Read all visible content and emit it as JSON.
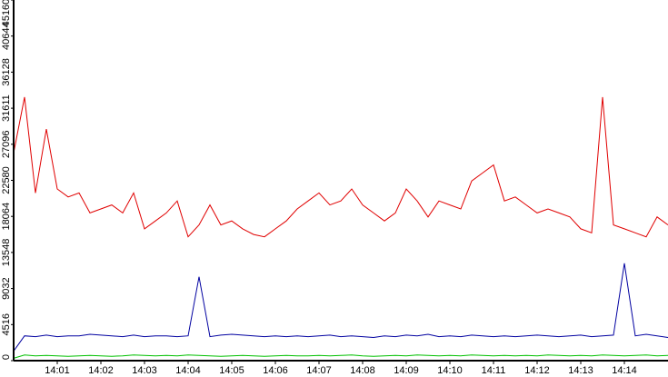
{
  "chart_data": {
    "type": "line",
    "x": [
      840,
      840.25,
      840.5,
      840.75,
      841,
      841.25,
      841.5,
      841.75,
      842,
      842.25,
      842.5,
      842.75,
      843,
      843.25,
      843.5,
      843.75,
      844,
      844.25,
      844.5,
      844.75,
      845,
      845.25,
      845.5,
      845.75,
      846,
      846.25,
      846.5,
      846.75,
      847,
      847.25,
      847.5,
      847.75,
      848,
      848.25,
      848.5,
      848.75,
      849,
      849.25,
      849.5,
      849.75,
      850,
      850.25,
      850.5,
      850.75,
      851,
      851.25,
      851.5,
      851.75,
      852,
      852.25,
      852.5,
      852.75,
      853,
      853.25,
      853.5,
      853.75,
      854,
      854.25,
      854.5,
      854.75,
      855
    ],
    "series": [
      {
        "name": "red",
        "color": "#e00000",
        "values": [
          26000,
          33000,
          21000,
          29000,
          21500,
          20500,
          21000,
          18500,
          19000,
          19500,
          18500,
          21000,
          16500,
          17500,
          18500,
          20000,
          15500,
          17000,
          19500,
          17000,
          17500,
          16500,
          15800,
          15500,
          16500,
          17500,
          19000,
          20000,
          21000,
          19500,
          20000,
          21500,
          19500,
          18500,
          17500,
          18500,
          21500,
          20000,
          18000,
          20000,
          19500,
          19000,
          22500,
          23500,
          24500,
          20000,
          20500,
          19500,
          18500,
          19000,
          18500,
          18000,
          16500,
          16000,
          33000,
          17000,
          16500,
          16000,
          15500,
          18000,
          17000
        ]
      },
      {
        "name": "blue",
        "color": "#0000a0",
        "values": [
          1200,
          3100,
          3000,
          3200,
          3000,
          3100,
          3100,
          3300,
          3200,
          3100,
          3000,
          3200,
          3000,
          3100,
          3100,
          3000,
          3100,
          10500,
          3000,
          3200,
          3300,
          3200,
          3100,
          3000,
          3100,
          3000,
          3100,
          3000,
          3100,
          3200,
          3000,
          3100,
          3000,
          2900,
          3100,
          3000,
          3200,
          3100,
          3300,
          3000,
          3100,
          3000,
          3200,
          3100,
          3000,
          3100,
          3000,
          3100,
          3200,
          3100,
          3000,
          3100,
          3200,
          3000,
          3100,
          3200,
          12200,
          3100,
          3300,
          3100,
          2900
        ]
      },
      {
        "name": "green",
        "color": "#00c000",
        "values": [
          300,
          700,
          600,
          650,
          600,
          550,
          600,
          650,
          600,
          550,
          600,
          700,
          650,
          600,
          650,
          600,
          700,
          650,
          600,
          550,
          600,
          650,
          600,
          550,
          600,
          650,
          600,
          600,
          650,
          600,
          650,
          700,
          600,
          550,
          600,
          650,
          600,
          700,
          650,
          600,
          650,
          600,
          700,
          650,
          600,
          650,
          600,
          650,
          600,
          700,
          650,
          600,
          650,
          600,
          700,
          650,
          600,
          650,
          700,
          600,
          650
        ]
      }
    ],
    "xlim": [
      840,
      855
    ],
    "xticks": [
      {
        "value": 841,
        "label": "14:01"
      },
      {
        "value": 842,
        "label": "14:02"
      },
      {
        "value": 843,
        "label": "14:03"
      },
      {
        "value": 844,
        "label": "14:04"
      },
      {
        "value": 845,
        "label": "14:05"
      },
      {
        "value": 846,
        "label": "14:06"
      },
      {
        "value": 847,
        "label": "14:07"
      },
      {
        "value": 848,
        "label": "14:08"
      },
      {
        "value": 849,
        "label": "14:09"
      },
      {
        "value": 850,
        "label": "14:10"
      },
      {
        "value": 851,
        "label": "14:11"
      },
      {
        "value": 852,
        "label": "14:12"
      },
      {
        "value": 853,
        "label": "14:13"
      },
      {
        "value": 854,
        "label": "14:14"
      }
    ],
    "ylim": [
      0,
      45160
    ],
    "yticks": [
      0,
      4516,
      9032,
      13548,
      18064,
      22580,
      27096,
      31611,
      36128,
      40644,
      45160
    ]
  }
}
